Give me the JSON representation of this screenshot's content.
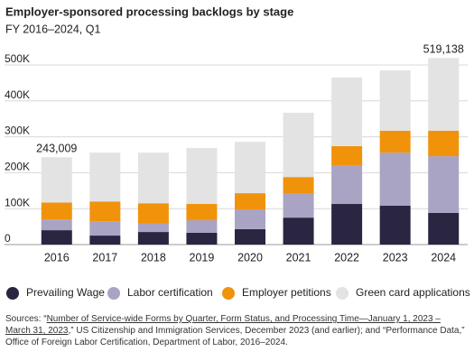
{
  "chart_data": {
    "type": "stacked_bar",
    "title": "Employer-sponsored processing backlogs by stage",
    "subtitle": "FY 2016–2024, Q1",
    "categories": [
      "2016",
      "2017",
      "2018",
      "2019",
      "2020",
      "2021",
      "2022",
      "2023",
      "2024"
    ],
    "series": [
      {
        "name": "Prevailing Wage",
        "color": "#2a2540",
        "values": [
          40000,
          25000,
          35000,
          33000,
          43000,
          75000,
          113000,
          108000,
          88000
        ]
      },
      {
        "name": "Labor certification",
        "color": "#a9a3c4",
        "values": [
          30000,
          40000,
          23000,
          35000,
          55000,
          66000,
          108000,
          148000,
          158000
        ]
      },
      {
        "name": "Employer petitions",
        "color": "#f0930a",
        "values": [
          47000,
          55000,
          57000,
          45000,
          45000,
          47000,
          53000,
          61000,
          71000
        ]
      },
      {
        "name": "Green card applications",
        "color": "#e3e3e3",
        "values": [
          126009,
          136000,
          141000,
          156000,
          143000,
          179000,
          191000,
          168000,
          202138
        ]
      }
    ],
    "total_labels": [
      {
        "category": "2016",
        "value": 243009,
        "label": "243,009"
      },
      {
        "category": "2024",
        "value": 519138,
        "label": "519,138"
      }
    ],
    "ylim": [
      0,
      520000
    ],
    "yticks": [
      {
        "value": 0,
        "label": "0"
      },
      {
        "value": 100000,
        "label": "100K"
      },
      {
        "value": 200000,
        "label": "200K"
      },
      {
        "value": 300000,
        "label": "300K"
      },
      {
        "value": 400000,
        "label": "400K"
      },
      {
        "value": 500000,
        "label": "500K"
      }
    ],
    "grid": true,
    "legend": "bottom",
    "source": {
      "prefix": "Sources: “",
      "link": "Number of Service-wide Forms by Quarter, Form Status, and Processing Time—January 1, 2023 – March 31, 2023",
      "suffix": ",” US Citizenship and Immigration Services, December 2023 (and earlier); and “Performance Data,” Office of Foreign Labor Certification, Department of Labor, 2016–2024."
    }
  }
}
